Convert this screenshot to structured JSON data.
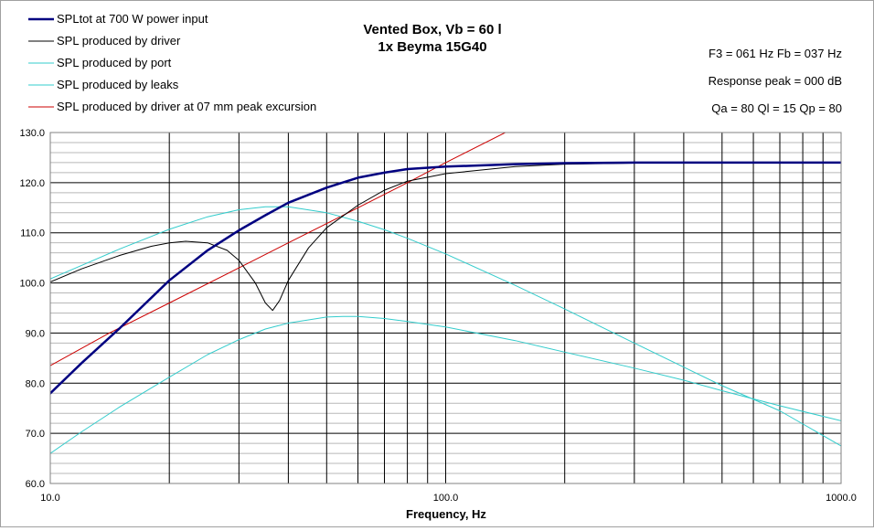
{
  "chart_data": {
    "type": "line",
    "title": "Vented Box, Vb = 60 l",
    "subtitle": "1x Beyma 15G40",
    "xlabel": "Frequency, Hz",
    "ylabel": "",
    "x_scale": "log",
    "xlim": [
      10,
      1000
    ],
    "ylim": [
      60,
      130
    ],
    "x_tick_labels": [
      "10.0",
      "100.0",
      "1000.0"
    ],
    "y_tick_labels": [
      "60.0",
      "70.0",
      "80.0",
      "90.0",
      "100.0",
      "110.0",
      "120.0",
      "130.0"
    ],
    "grid": true,
    "legend_position": "top-left",
    "info_lines": [
      "F3 = 061 Hz  Fb = 037 Hz",
      "Response peak = 000 dB",
      "Qa = 80  Ql = 15  Qp = 80"
    ],
    "series": [
      {
        "name": "SPLtot at 700 W power input",
        "color": "#000080",
        "values": [
          [
            10,
            78
          ],
          [
            12,
            84
          ],
          [
            15,
            91
          ],
          [
            20,
            100.5
          ],
          [
            25,
            106.5
          ],
          [
            30,
            110.5
          ],
          [
            35,
            113.5
          ],
          [
            40,
            116
          ],
          [
            50,
            119
          ],
          [
            60,
            121
          ],
          [
            70,
            122
          ],
          [
            80,
            122.7
          ],
          [
            100,
            123.2
          ],
          [
            150,
            123.7
          ],
          [
            200,
            123.9
          ],
          [
            300,
            124
          ],
          [
            500,
            124
          ],
          [
            1000,
            124
          ]
        ]
      },
      {
        "name": "SPL produced by driver",
        "color": "#000000",
        "values": [
          [
            10,
            100.2
          ],
          [
            12,
            102.8
          ],
          [
            15,
            105.5
          ],
          [
            18,
            107.3
          ],
          [
            20,
            108
          ],
          [
            22,
            108.3
          ],
          [
            25,
            108
          ],
          [
            28,
            106.5
          ],
          [
            30,
            104.5
          ],
          [
            33,
            100
          ],
          [
            35,
            96
          ],
          [
            36.5,
            94.5
          ],
          [
            38,
            96.5
          ],
          [
            40,
            100.5
          ],
          [
            45,
            107
          ],
          [
            50,
            111
          ],
          [
            60,
            115.5
          ],
          [
            70,
            118.5
          ],
          [
            80,
            120.3
          ],
          [
            100,
            121.8
          ],
          [
            150,
            123.2
          ],
          [
            200,
            123.7
          ],
          [
            300,
            123.9
          ],
          [
            500,
            124
          ],
          [
            1000,
            124
          ]
        ]
      },
      {
        "name": "SPL produced by port",
        "color": "#33CCCC",
        "values": [
          [
            10,
            100.8
          ],
          [
            12,
            103.5
          ],
          [
            15,
            106.8
          ],
          [
            20,
            110.7
          ],
          [
            25,
            113.2
          ],
          [
            30,
            114.6
          ],
          [
            35,
            115.2
          ],
          [
            40,
            115.2
          ],
          [
            50,
            114
          ],
          [
            60,
            112.3
          ],
          [
            70,
            110.6
          ],
          [
            80,
            108.9
          ],
          [
            100,
            105.8
          ],
          [
            150,
            99.5
          ],
          [
            200,
            94.8
          ],
          [
            300,
            88
          ],
          [
            400,
            83.2
          ],
          [
            500,
            79.5
          ],
          [
            700,
            74.5
          ],
          [
            1000,
            67.5
          ]
        ]
      },
      {
        "name": "SPL produced by leaks",
        "color": "#33CCCC",
        "values": [
          [
            10,
            66
          ],
          [
            12,
            70.3
          ],
          [
            15,
            75.3
          ],
          [
            20,
            81.2
          ],
          [
            25,
            85.7
          ],
          [
            30,
            88.7
          ],
          [
            35,
            90.8
          ],
          [
            40,
            92
          ],
          [
            50,
            93.2
          ],
          [
            55,
            93.3
          ],
          [
            60,
            93.3
          ],
          [
            70,
            92.9
          ],
          [
            80,
            92.3
          ],
          [
            100,
            91.2
          ],
          [
            150,
            88.5
          ],
          [
            200,
            86.2
          ],
          [
            300,
            83
          ],
          [
            400,
            80.6
          ],
          [
            500,
            78.5
          ],
          [
            700,
            75.5
          ],
          [
            1000,
            72.5
          ]
        ]
      },
      {
        "name": "SPL produced by driver at 07 mm peak excursion",
        "color": "#CC0000",
        "values": [
          [
            10,
            83.5
          ],
          [
            14.1,
            90
          ],
          [
            20,
            96
          ],
          [
            30,
            103
          ],
          [
            40,
            108
          ],
          [
            60,
            115
          ],
          [
            80,
            120
          ],
          [
            100,
            124
          ],
          [
            150,
            131
          ]
        ]
      }
    ]
  }
}
